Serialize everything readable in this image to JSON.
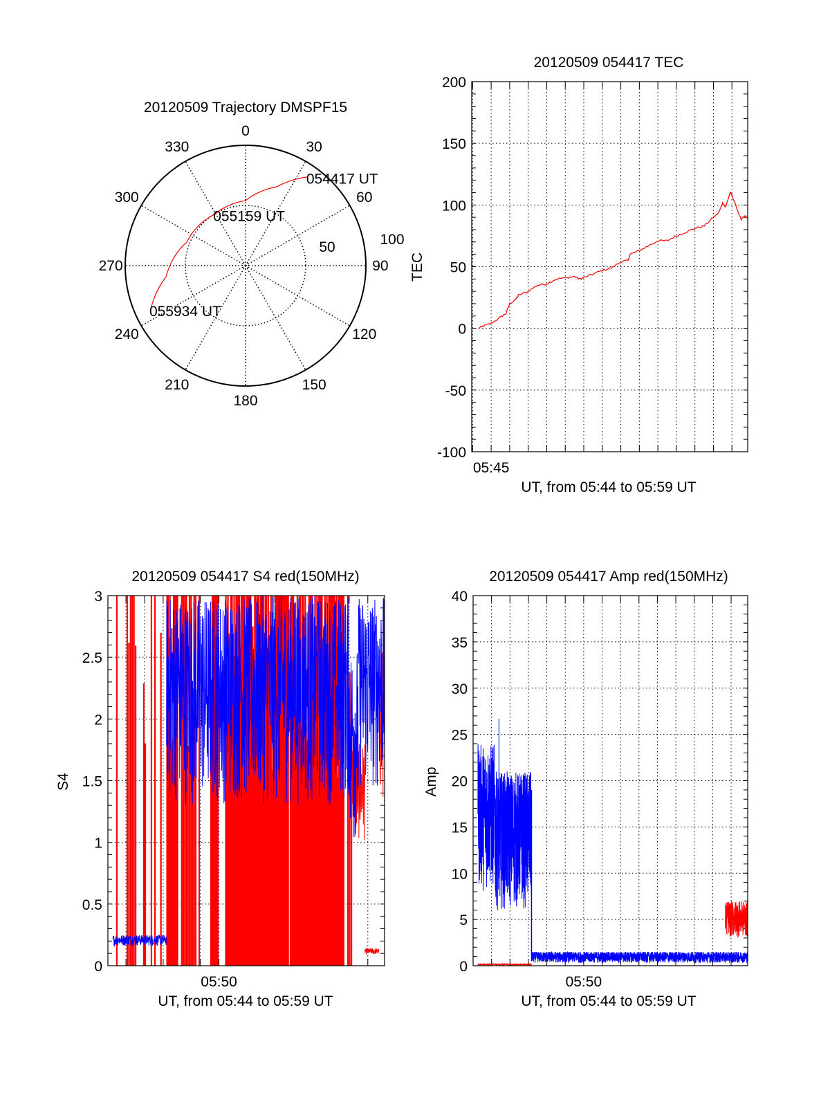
{
  "colors": {
    "red": "#ff0000",
    "blue": "#0000ff",
    "axis": "#000000"
  },
  "chart_data": [
    {
      "type": "polar",
      "title": "20120509 Trajectory DMSPF15",
      "angle_labels": [
        "0",
        "30",
        "60",
        "90",
        "120",
        "150",
        "180",
        "210",
        "240",
        "270",
        "300",
        "330"
      ],
      "radius_labels": [
        "50",
        "100"
      ],
      "rlim": [
        0,
        100
      ],
      "trajectory": {
        "azimuth_deg": [
          35,
          21.5,
          0,
          328.7,
          291.8,
          262,
          245.3
        ],
        "radius": [
          90,
          70.4,
          54,
          49.8,
          52.6,
          66.7,
          86.7
        ]
      },
      "annotations": [
        {
          "text": "054417 UT",
          "azimuth_deg": 35,
          "radius": 90
        },
        {
          "text": "055159 UT",
          "azimuth_deg": 329,
          "radius": 50
        },
        {
          "text": "055934 UT",
          "azimuth_deg": 245.3,
          "radius": 86.7
        }
      ]
    },
    {
      "type": "line",
      "title": "20120509 054417 TEC",
      "ylabel": "TEC",
      "xlabel": "UT, from 05:44 to 05:59 UT",
      "x_unit": "minutes after 05:00",
      "xlim": [
        43.95,
        58.85
      ],
      "ylim": [
        -100,
        200
      ],
      "yticks": [
        "200",
        "150",
        "100",
        "50",
        "0",
        "-50",
        "-100"
      ],
      "xticks": [
        {
          "value": 45,
          "label": "05:45"
        }
      ],
      "grid": true,
      "series": [
        {
          "name": "TEC",
          "color": "red",
          "x": [
            44.3,
            44.6,
            45,
            45.5,
            45.8,
            46,
            46.3,
            46.5,
            47,
            47.5,
            48,
            48.5,
            49,
            49.5,
            49.8,
            50,
            50.5,
            51,
            51.5,
            52,
            52.4,
            52.5,
            53,
            53.5,
            54,
            54.5,
            55,
            55.5,
            56,
            56.5,
            57,
            57.3,
            57.5,
            57.65,
            57.9,
            58,
            58.2,
            58.5,
            58.7,
            58.85
          ],
          "y": [
            0,
            2,
            4,
            9,
            12,
            20,
            23,
            27,
            30,
            35,
            36,
            40,
            41,
            42,
            40,
            41,
            44,
            47,
            49,
            54,
            55,
            60,
            63,
            67,
            71,
            71,
            75,
            78,
            81,
            83,
            90,
            94,
            102,
            98,
            110,
            108,
            100,
            88,
            91,
            89
          ]
        }
      ]
    },
    {
      "type": "line",
      "title": "20120509 054417 S4 red(150MHz)",
      "ylabel": "S4",
      "xlabel": "UT, from 05:44 to 05:59 UT",
      "x_unit": "minutes after 05:00",
      "xlim": [
        44.03,
        58.9
      ],
      "ylim": [
        0,
        3
      ],
      "yticks": [
        "3",
        "2.5",
        "2",
        "1.5",
        "1",
        "0.5",
        "0"
      ],
      "xticks": [
        {
          "value": 50,
          "label": "05:50"
        }
      ],
      "grid": true,
      "series": [
        {
          "name": "S4 blue",
          "color": "blue",
          "segments": [
            [
              44.3,
              47.18,
              0.16,
              0.25
            ],
            [
              47.18,
              57.0,
              1.3,
              3.0
            ],
            [
              57.0,
              57.5,
              1.0,
              2.6
            ],
            [
              57.5,
              58.9,
              1.4,
              3.0
            ]
          ]
        },
        {
          "name": "S4 red spikes",
          "color": "red",
          "spike_zones": [
            [
              44.51,
              44.53,
              1
            ],
            [
              45.07,
              45.52,
              6
            ],
            [
              45.96,
              46.04,
              2
            ],
            [
              46.37,
              46.38,
              1
            ],
            [
              46.56,
              46.57,
              1
            ],
            [
              46.88,
              46.89,
              1
            ],
            [
              47.21,
              47.77,
              12
            ],
            [
              48.0,
              48.75,
              10
            ],
            [
              48.94,
              48.95,
              1
            ],
            [
              49.57,
              49.94,
              6
            ],
            [
              50.37,
              51.98,
              30
            ],
            [
              52.04,
              53.1,
              22
            ],
            [
              53.1,
              53.72,
              60
            ],
            [
              53.84,
              56.7,
              55
            ],
            [
              56.93,
              57.12,
              3
            ]
          ],
          "tail": [
            [
              57.1,
              57.84,
              1.0,
              1.8
            ],
            [
              57.84,
              58.6,
              0.09,
              0.14
            ],
            [
              58.6,
              58.9,
              1.3,
              2.6
            ]
          ]
        }
      ]
    },
    {
      "type": "line",
      "title": "20120509 054417 Amp red(150MHz)",
      "ylabel": "Amp",
      "xlabel": "UT, from 05:44 to 05:59 UT",
      "x_unit": "minutes after 05:00",
      "xlim": [
        44.0,
        58.9
      ],
      "ylim": [
        0,
        40
      ],
      "yticks": [
        "40",
        "35",
        "30",
        "25",
        "20",
        "15",
        "10",
        "5",
        "0"
      ],
      "xticks": [
        {
          "value": 50,
          "label": "05:50"
        }
      ],
      "grid": true,
      "series": [
        {
          "name": "Amp blue",
          "color": "blue",
          "segments": [
            [
              44.26,
              45.2,
              8,
              24
            ],
            [
              45.2,
              47.17,
              6,
              21
            ],
            [
              47.17,
              58.9,
              0.3,
              1.5
            ]
          ],
          "peak": 26.7
        },
        {
          "name": "Amp red",
          "color": "red",
          "segments": [
            [
              44.26,
              47.17,
              0.05,
              0.2
            ],
            [
              57.68,
              58.9,
              3,
              7
            ]
          ]
        }
      ]
    }
  ]
}
